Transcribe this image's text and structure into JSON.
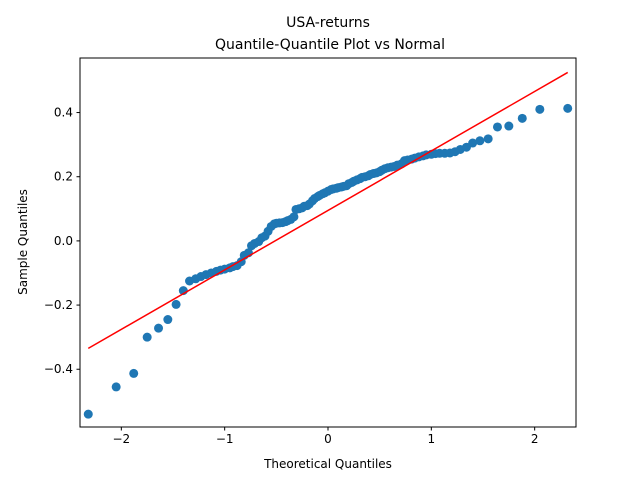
{
  "chart_data": {
    "type": "scatter",
    "title": "USA-returns",
    "subtitle": "Quantile-Quantile Plot vs Normal",
    "xlabel": "Theoretical Quantiles",
    "ylabel": "Sample Quantiles",
    "xlim": [
      -2.4,
      2.4
    ],
    "ylim": [
      -0.58,
      0.57
    ],
    "xticks": [
      -2,
      -1,
      0,
      1,
      2
    ],
    "xtick_labels": [
      "−2",
      "−1",
      "0",
      "1",
      "2"
    ],
    "yticks": [
      -0.4,
      -0.2,
      0.0,
      0.2,
      0.4
    ],
    "ytick_labels": [
      "−0.4",
      "−0.2",
      "0.0",
      "0.2",
      "0.4"
    ],
    "grid": false,
    "colors": {
      "points": "#1f77b4",
      "reference_line": "#ff0000"
    },
    "series": [
      {
        "name": "sample quantiles",
        "kind": "points",
        "x": [
          -2.32,
          -2.05,
          -1.88,
          -1.75,
          -1.64,
          -1.55,
          -1.47,
          -1.4,
          -1.34,
          -1.28,
          -1.23,
          -1.18,
          -1.13,
          -1.08,
          -1.04,
          -1.0,
          -0.95,
          -0.92,
          -0.88,
          -0.84,
          -0.81,
          -0.77,
          -0.74,
          -0.71,
          -0.67,
          -0.64,
          -0.61,
          -0.58,
          -0.55,
          -0.52,
          -0.5,
          -0.47,
          -0.44,
          -0.41,
          -0.39,
          -0.36,
          -0.33,
          -0.31,
          -0.28,
          -0.25,
          -0.23,
          -0.2,
          -0.18,
          -0.15,
          -0.13,
          -0.1,
          -0.08,
          -0.05,
          -0.03,
          0.0,
          0.03,
          0.05,
          0.08,
          0.1,
          0.13,
          0.15,
          0.18,
          0.2,
          0.23,
          0.25,
          0.28,
          0.31,
          0.33,
          0.36,
          0.39,
          0.41,
          0.44,
          0.47,
          0.5,
          0.52,
          0.55,
          0.58,
          0.61,
          0.64,
          0.67,
          0.71,
          0.74,
          0.77,
          0.81,
          0.84,
          0.88,
          0.92,
          0.95,
          1.0,
          1.04,
          1.08,
          1.13,
          1.18,
          1.23,
          1.28,
          1.34,
          1.4,
          1.47,
          1.55,
          1.64,
          1.75,
          1.88,
          2.05,
          2.32
        ],
        "y": [
          -0.54,
          -0.455,
          -0.413,
          -0.3,
          -0.272,
          -0.245,
          -0.198,
          -0.155,
          -0.125,
          -0.118,
          -0.111,
          -0.105,
          -0.1,
          -0.095,
          -0.091,
          -0.088,
          -0.084,
          -0.08,
          -0.077,
          -0.065,
          -0.045,
          -0.037,
          -0.015,
          -0.008,
          -0.002,
          0.01,
          0.015,
          0.03,
          0.045,
          0.053,
          0.055,
          0.056,
          0.057,
          0.06,
          0.063,
          0.067,
          0.075,
          0.098,
          0.1,
          0.103,
          0.108,
          0.11,
          0.115,
          0.125,
          0.132,
          0.138,
          0.142,
          0.147,
          0.15,
          0.155,
          0.16,
          0.162,
          0.164,
          0.166,
          0.168,
          0.17,
          0.172,
          0.178,
          0.182,
          0.186,
          0.19,
          0.194,
          0.198,
          0.2,
          0.203,
          0.207,
          0.21,
          0.212,
          0.216,
          0.22,
          0.225,
          0.228,
          0.23,
          0.232,
          0.236,
          0.24,
          0.25,
          0.252,
          0.255,
          0.258,
          0.262,
          0.265,
          0.268,
          0.27,
          0.272,
          0.273,
          0.273,
          0.274,
          0.278,
          0.285,
          0.292,
          0.305,
          0.312,
          0.318,
          0.355,
          0.358,
          0.382,
          0.41,
          0.413
        ]
      },
      {
        "name": "reference line",
        "kind": "line",
        "x": [
          -2.32,
          2.32
        ],
        "y": [
          -0.335,
          0.525
        ]
      }
    ]
  }
}
